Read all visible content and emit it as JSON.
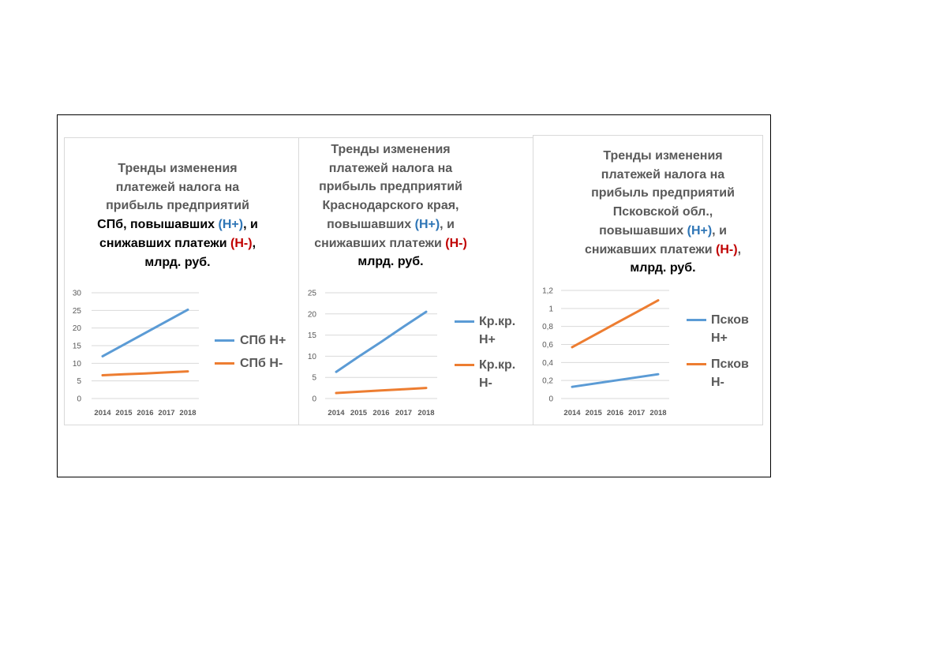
{
  "colors": {
    "series_plus": "#5b9bd5",
    "series_minus": "#ed7d31",
    "plus_text": "#2e75b6",
    "minus_text": "#c00000",
    "grid": "#d9d9d9",
    "text": "#595959"
  },
  "charts": [
    {
      "title_parts": [
        {
          "text": "Тренды изменения",
          "style": "",
          "br": true
        },
        {
          "text": "платежей налога на",
          "style": "",
          "br": true
        },
        {
          "text": "прибыль  предприятий",
          "style": "",
          "br": true
        },
        {
          "text": "СПб, повышавших ",
          "style": "blk",
          "br": false
        },
        {
          "text": "(Н+)",
          "style": "hp",
          "br": false
        },
        {
          "text": ",  и",
          "style": "blk",
          "br": true
        },
        {
          "text": "снижавших платежи ",
          "style": "blk",
          "br": false
        },
        {
          "text": "(Н-)",
          "style": "hm",
          "br": false
        },
        {
          "text": ",",
          "style": "blk",
          "br": true
        },
        {
          "text": "млрд. руб.",
          "style": "blk",
          "br": false
        }
      ],
      "legend": [
        "СПб Н+",
        "СПб Н-"
      ]
    },
    {
      "title_parts": [
        {
          "text": "Тренды изменения",
          "style": "",
          "br": true
        },
        {
          "text": "платежей налога на",
          "style": "",
          "br": true
        },
        {
          "text": "прибыль предприятий",
          "style": "",
          "br": true
        },
        {
          "text": "Краснодарского края,",
          "style": "",
          "br": true
        },
        {
          "text": "повышавших ",
          "style": "",
          "br": false
        },
        {
          "text": "(Н+)",
          "style": "hp",
          "br": false
        },
        {
          "text": ", и",
          "style": "",
          "br": true
        },
        {
          "text": "снижавших платежи ",
          "style": "",
          "br": false
        },
        {
          "text": "(Н-)",
          "style": "hm",
          "br": true
        },
        {
          "text": "млрд. руб.",
          "style": "blk",
          "br": false
        }
      ],
      "legend": [
        "Кр.кр.\nН+",
        "Кр.кр.\nН-"
      ]
    },
    {
      "title_parts": [
        {
          "text": "Тренды изменения",
          "style": "",
          "br": true
        },
        {
          "text": "платежей налога на",
          "style": "",
          "br": true
        },
        {
          "text": "прибыль предприятий",
          "style": "",
          "br": true
        },
        {
          "text": "Псковской обл.,",
          "style": "",
          "br": true
        },
        {
          "text": "повышавших ",
          "style": "",
          "br": false
        },
        {
          "text": "(Н+)",
          "style": "hp",
          "br": false
        },
        {
          "text": ", и",
          "style": "",
          "br": true
        },
        {
          "text": "снижавших платежи ",
          "style": "",
          "br": false
        },
        {
          "text": "(Н-)",
          "style": "hm",
          "br": false
        },
        {
          "text": ",",
          "style": "",
          "br": true
        },
        {
          "text": "млрд. руб.",
          "style": "blk",
          "br": false
        }
      ],
      "legend": [
        "Псков\nН+",
        "Псков\nН-"
      ]
    }
  ],
  "chart_data": [
    {
      "type": "line",
      "x": [
        "2014",
        "2015",
        "2016",
        "2017",
        "2018"
      ],
      "yticks": [
        "0",
        "5",
        "10",
        "15",
        "20",
        "25",
        "30"
      ],
      "ylim": [
        0,
        30
      ],
      "grid": true,
      "legend_position": "right",
      "series": [
        {
          "name": "СПб Н+",
          "values": [
            12.0,
            15.3,
            18.6,
            21.9,
            25.2
          ]
        },
        {
          "name": "СПб Н-",
          "values": [
            6.6,
            6.9,
            7.1,
            7.4,
            7.7
          ]
        }
      ]
    },
    {
      "type": "line",
      "x": [
        "2014",
        "2015",
        "2016",
        "2017",
        "2018"
      ],
      "yticks": [
        "0",
        "5",
        "10",
        "15",
        "20",
        "25"
      ],
      "ylim": [
        0,
        25
      ],
      "grid": true,
      "legend_position": "right",
      "series": [
        {
          "name": "Кр.кр. Н+",
          "values": [
            6.3,
            9.9,
            13.4,
            17.0,
            20.5
          ]
        },
        {
          "name": "Кр.кр. Н-",
          "values": [
            1.3,
            1.6,
            1.9,
            2.2,
            2.5
          ]
        }
      ]
    },
    {
      "type": "line",
      "x": [
        "2014",
        "2015",
        "2016",
        "2017",
        "2018"
      ],
      "yticks": [
        "0",
        "0,2",
        "0,4",
        "0,6",
        "0,8",
        "1",
        "1,2"
      ],
      "ylim": [
        0,
        1.2
      ],
      "grid": true,
      "legend_position": "right",
      "series": [
        {
          "name": "Псков Н+",
          "values": [
            0.13,
            0.165,
            0.2,
            0.235,
            0.27
          ]
        },
        {
          "name": "Псков Н-",
          "values": [
            0.57,
            0.7,
            0.83,
            0.96,
            1.09
          ]
        }
      ]
    }
  ]
}
